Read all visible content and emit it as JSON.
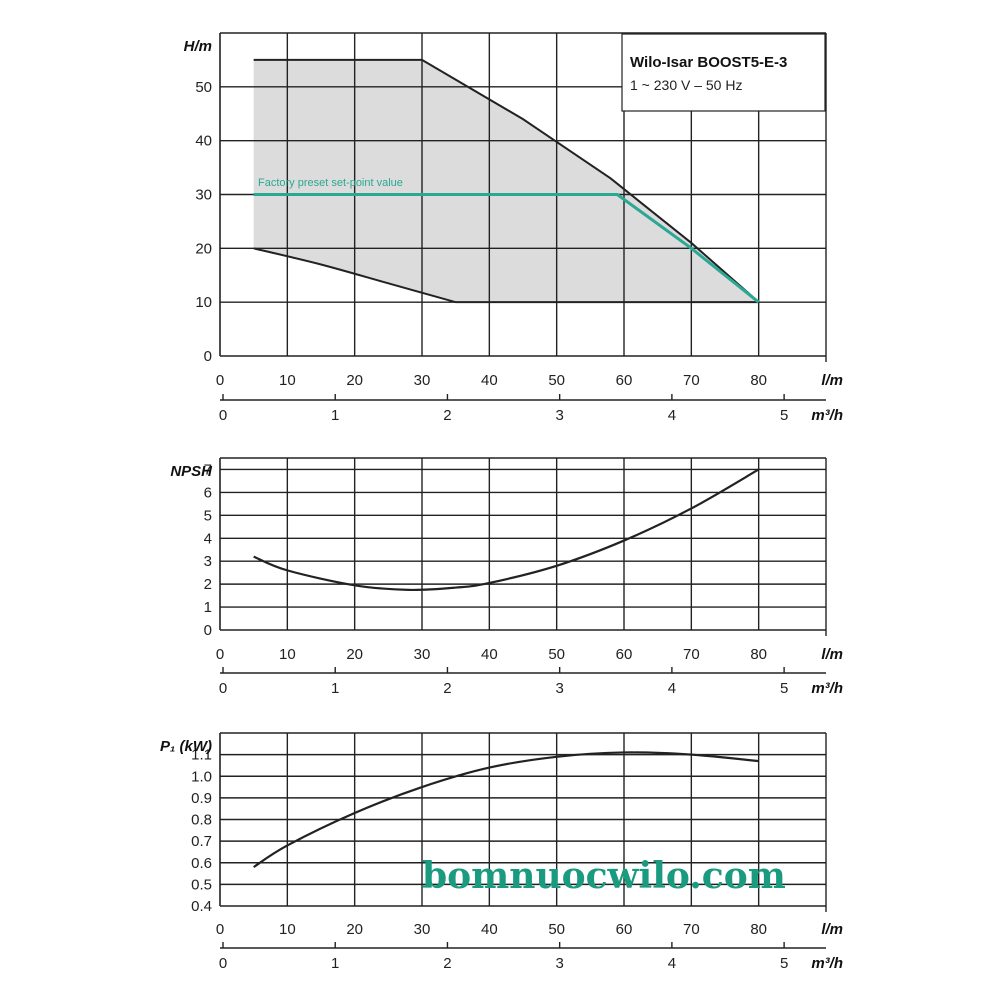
{
  "colors": {
    "curve": "#222222",
    "area": "#dcdcdc",
    "setpoint": "#2aa894",
    "grid": "#222222",
    "watermark": "#1a9b80"
  },
  "watermark": "bomnuocwilo.com",
  "chart_data": [
    {
      "type": "area",
      "ylabel": "H/m",
      "xlabel": "l/m",
      "x2label": "m³/h",
      "xlim": [
        0,
        90
      ],
      "ylim": [
        0,
        60
      ],
      "x_ticks": [
        0,
        10,
        20,
        30,
        40,
        50,
        60,
        70,
        80
      ],
      "y_ticks": [
        0,
        10,
        20,
        30,
        40,
        50
      ],
      "x2_ticks": [
        0,
        1,
        2,
        3,
        4,
        5
      ],
      "legend": {
        "title": "Wilo-Isar BOOST5-E-3",
        "subtitle": "1 ~ 230 V – 50 Hz",
        "placement": "top-right"
      },
      "annotation": "Factory preset set-point value",
      "series": [
        {
          "role": "upper",
          "x": [
            5,
            30,
            45,
            58,
            70,
            80
          ],
          "y": [
            55,
            55,
            44,
            33,
            21,
            10
          ]
        },
        {
          "role": "lower",
          "x": [
            5,
            15,
            25,
            35,
            80
          ],
          "y": [
            20,
            17,
            13.5,
            10,
            10
          ]
        },
        {
          "role": "setpoint",
          "x": [
            5,
            59,
            70,
            80
          ],
          "y": [
            30,
            30,
            20,
            10
          ]
        }
      ]
    },
    {
      "type": "line",
      "ylabel": "NPSH",
      "xlabel": "l/m",
      "x2label": "m³/h",
      "xlim": [
        0,
        90
      ],
      "ylim": [
        0,
        7.5
      ],
      "x_ticks": [
        0,
        10,
        20,
        30,
        40,
        50,
        60,
        70,
        80
      ],
      "y_ticks": [
        0,
        1,
        2,
        3,
        4,
        5,
        6,
        7
      ],
      "x2_ticks": [
        0,
        1,
        2,
        3,
        4,
        5
      ],
      "series": [
        {
          "x": [
            5,
            10,
            20,
            28,
            35,
            40,
            50,
            60,
            70,
            80
          ],
          "y": [
            3.2,
            2.6,
            1.95,
            1.75,
            1.85,
            2.05,
            2.8,
            3.9,
            5.3,
            7.0
          ]
        }
      ]
    },
    {
      "type": "line",
      "ylabel": "P₁ (kW)",
      "xlabel": "l/m",
      "x2label": "m³/h",
      "xlim": [
        0,
        90
      ],
      "ylim": [
        0.4,
        1.2
      ],
      "x_ticks": [
        0,
        10,
        20,
        30,
        40,
        50,
        60,
        70,
        80
      ],
      "y_ticks": [
        0.4,
        0.5,
        0.6,
        0.7,
        0.8,
        0.9,
        1.0,
        1.1
      ],
      "y_tick_labels": [
        "0.4",
        "0.5",
        "0.6",
        "0.7",
        "0.8",
        "0.9",
        "1.0",
        "1.1"
      ],
      "x2_ticks": [
        0,
        1,
        2,
        3,
        4,
        5
      ],
      "series": [
        {
          "x": [
            5,
            10,
            20,
            30,
            40,
            50,
            60,
            70,
            80
          ],
          "y": [
            0.58,
            0.68,
            0.83,
            0.95,
            1.04,
            1.09,
            1.11,
            1.1,
            1.07
          ]
        }
      ]
    }
  ]
}
